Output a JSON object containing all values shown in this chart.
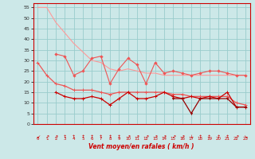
{
  "x": [
    0,
    1,
    2,
    3,
    4,
    5,
    6,
    7,
    8,
    9,
    10,
    11,
    12,
    13,
    14,
    15,
    16,
    17,
    18,
    19,
    20,
    21,
    22,
    23
  ],
  "line_rafales_top": [
    55,
    55,
    48,
    43,
    38,
    34,
    30,
    29,
    26,
    25,
    26,
    25,
    24,
    24,
    23,
    23,
    23,
    23,
    23,
    23,
    23,
    23,
    23,
    23
  ],
  "line_rafales_mid": [
    null,
    null,
    33,
    32,
    23,
    25,
    31,
    32,
    19,
    26,
    31,
    28,
    19,
    29,
    24,
    25,
    24,
    23,
    24,
    25,
    25,
    24,
    23,
    23
  ],
  "line_moy_top": [
    29,
    23,
    19,
    18,
    16,
    16,
    16,
    15,
    14,
    15,
    15,
    15,
    15,
    15,
    15,
    14,
    14,
    13,
    13,
    13,
    13,
    13,
    10,
    9
  ],
  "line_moy_mid": [
    null,
    null,
    15,
    13,
    12,
    12,
    13,
    12,
    9,
    12,
    15,
    12,
    12,
    13,
    15,
    13,
    12,
    13,
    12,
    13,
    12,
    15,
    8,
    8
  ],
  "line_moy_bot": [
    null,
    null,
    null,
    null,
    null,
    null,
    null,
    null,
    null,
    null,
    null,
    null,
    null,
    null,
    null,
    12,
    12,
    5,
    12,
    12,
    12,
    12,
    8,
    8
  ],
  "bg_color": "#cce8e8",
  "grid_color": "#99cccc",
  "spine_color": "#cc0000",
  "c_pink_light": "#ff9999",
  "c_pink_dark": "#ee5555",
  "c_red_bright": "#cc0000",
  "c_red_dark": "#990000",
  "xlabel": "Vent moyen/en rafales ( km/h )",
  "ylim": [
    0,
    57
  ],
  "xlim": [
    -0.5,
    23.5
  ],
  "yticks": [
    0,
    5,
    10,
    15,
    20,
    25,
    30,
    35,
    40,
    45,
    50,
    55
  ],
  "xticks": [
    0,
    1,
    2,
    3,
    4,
    5,
    6,
    7,
    8,
    9,
    10,
    11,
    12,
    13,
    14,
    15,
    16,
    17,
    18,
    19,
    20,
    21,
    22,
    23
  ],
  "arrows": [
    "↙",
    "↗",
    "↗",
    "↑",
    "↑",
    "↑",
    "↑",
    "↑",
    "↑",
    "↑",
    "↗",
    "↗",
    "↗",
    "↗",
    "↗",
    "↗",
    "↗",
    "↓",
    "↑",
    "↑",
    "↑",
    "↑",
    "↗",
    "↘"
  ]
}
